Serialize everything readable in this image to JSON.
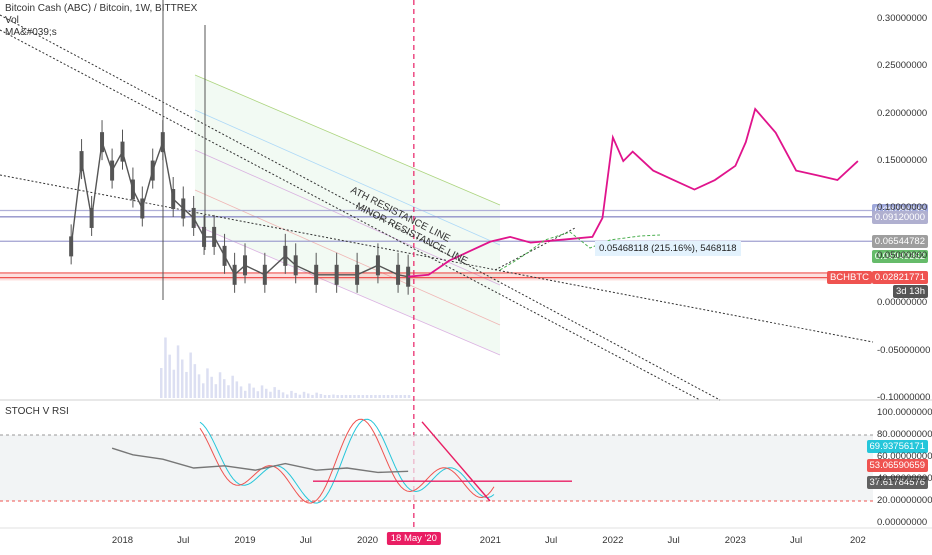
{
  "header": {
    "symbol_line": "Bitcoin Cash (ABC) / Bitcoin, 1W, BITTREX",
    "vol_label": "Vol",
    "ma_label": "MA&#039;s"
  },
  "oscillator": {
    "title": "STOCH V RSI"
  },
  "colors": {
    "candle": "#555555",
    "projection": "#e0148c",
    "support_band": "#ef5350",
    "resistance_lines": "#b0b0e0",
    "crosshair": "#e91e63",
    "stoch_k": "#26c6da",
    "stoch_d": "#ef5350",
    "rsi": "#777777",
    "accent_green": "#4caf50",
    "osc_trendline": "#e91e63",
    "channel_fill": "#e8f5e9"
  },
  "annotations": {
    "ath_line": "ATH RESISTANCE LINE",
    "minor_line": "MINOR RESISTANCE LINE",
    "measure": "0.05468118 (215.16%), 5468118"
  },
  "chart_data": [
    {
      "type": "line",
      "title": "Bitcoin Cash (ABC) / Bitcoin, 1W, BITTREX",
      "ylim": [
        -0.1,
        0.32
      ],
      "y_ticks": [
        "0.30000000",
        "0.25000000",
        "0.20000000",
        "0.15000000",
        "0.10000000",
        "0.05000000",
        "0.00000000",
        "-0.05000000",
        "-0.10000000"
      ],
      "x_ticks": [
        "2018",
        "Jul",
        "2019",
        "Jul",
        "2020",
        "18 May '20",
        "2021",
        "Jul",
        "2022",
        "Jul",
        "2023",
        "Jul",
        "202"
      ],
      "series": [
        {
          "name": "BCHBTC",
          "x": [
            "2017-08",
            "2017-09",
            "2017-10",
            "2017-11",
            "2017-12",
            "2018-01",
            "2018-02",
            "2018-03",
            "2018-04",
            "2018-05",
            "2018-06",
            "2018-07",
            "2018-08",
            "2018-09",
            "2018-10",
            "2018-11",
            "2018-12",
            "2019-01",
            "2019-03",
            "2019-05",
            "2019-06",
            "2019-08",
            "2019-10",
            "2019-12",
            "2020-02",
            "2020-04",
            "2020-05"
          ],
          "values": [
            0.06,
            0.15,
            0.09,
            0.17,
            0.14,
            0.16,
            0.12,
            0.1,
            0.14,
            0.17,
            0.11,
            0.1,
            0.09,
            0.07,
            0.07,
            0.05,
            0.03,
            0.04,
            0.03,
            0.05,
            0.04,
            0.03,
            0.03,
            0.03,
            0.04,
            0.03,
            0.028
          ]
        },
        {
          "x": [
            "2020-05",
            "2020-07",
            "2020-09",
            "2020-11",
            "2021-01",
            "2021-03",
            "2021-05",
            "2021-07",
            "2021-09",
            "2021-11",
            "2021-12",
            "2022-01",
            "2022-02",
            "2022-03",
            "2022-05",
            "2022-07",
            "2022-09",
            "2022-11",
            "2023-01",
            "2023-02",
            "2023-03",
            "2023-05",
            "2023-07",
            "2023-09",
            "2023-11",
            "2024-01"
          ],
          "values": [
            0.028,
            0.03,
            0.045,
            0.055,
            0.065,
            0.07,
            0.064,
            0.066,
            0.068,
            0.07,
            0.09,
            0.175,
            0.15,
            0.16,
            0.14,
            0.13,
            0.12,
            0.13,
            0.145,
            0.17,
            0.205,
            0.18,
            0.14,
            0.135,
            0.13,
            0.15
          ]
        }
      ],
      "price_levels": [
        "0.09789735",
        "0.09120000",
        "0.06544782",
        "0.04949362",
        "0.02821771",
        "3d 13h"
      ]
    },
    {
      "type": "line",
      "title": "STOCH V RSI",
      "ylim": [
        0,
        100
      ],
      "y_ticks": [
        "100.00000000",
        "80.00000000",
        "60.00000000",
        "40.00000000",
        "20.00000000",
        "0.00000000"
      ],
      "series": [
        {
          "x": [
            "2017-12",
            "2018-02",
            "2018-05",
            "2018-08",
            "2018-11",
            "2019-02",
            "2019-05",
            "2019-08",
            "2019-11",
            "2020-02",
            "2020-05"
          ],
          "values": [
            68,
            62,
            58,
            50,
            52,
            48,
            54,
            48,
            50,
            46,
            47
          ]
        }
      ],
      "price_levels": [
        "69.93756171",
        "53.06590659",
        "37.61784576"
      ]
    }
  ]
}
